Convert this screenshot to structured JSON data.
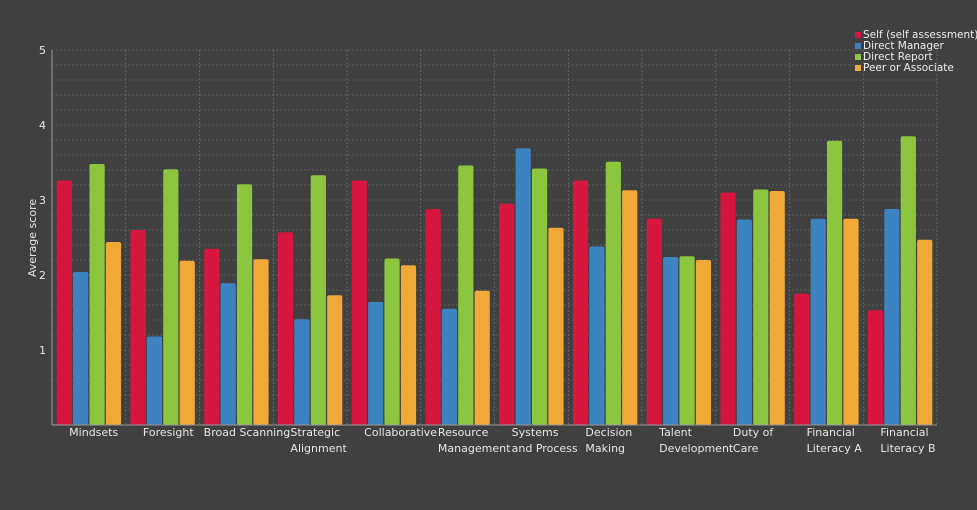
{
  "chart_data": {
    "type": "bar",
    "title": "",
    "xlabel": "",
    "ylabel": "Average score",
    "ylim": [
      0,
      5
    ],
    "yticks": [
      1,
      2,
      3,
      4,
      5
    ],
    "grid": true,
    "legend_position": "top-right",
    "categories": [
      [
        "Mindsets"
      ],
      [
        "Foresight"
      ],
      [
        "Broad Scanning"
      ],
      [
        "Strategic",
        "Alignment"
      ],
      [
        "Collaborative"
      ],
      [
        "Resource",
        "Management"
      ],
      [
        "Systems",
        "and Process"
      ],
      [
        "Decision",
        "Making"
      ],
      [
        "Talent",
        "Development"
      ],
      [
        "Duty of",
        "Care"
      ],
      [
        "Financial",
        "Literacy A"
      ],
      [
        "Financial",
        "Literacy B"
      ]
    ],
    "series": [
      {
        "name": "Self (self assessment)",
        "color": "#d6163f",
        "values": [
          3.26,
          2.6,
          2.35,
          2.57,
          3.26,
          2.88,
          2.95,
          3.26,
          2.75,
          3.1,
          1.75,
          1.53
        ]
      },
      {
        "name": "Direct Manager",
        "color": "#3d83bf",
        "values": [
          2.04,
          1.18,
          1.89,
          1.41,
          1.64,
          1.55,
          3.69,
          2.38,
          2.24,
          2.74,
          2.75,
          2.88
        ]
      },
      {
        "name": "Direct Report",
        "color": "#8cc63f",
        "values": [
          3.48,
          3.41,
          3.21,
          3.33,
          2.22,
          3.46,
          3.42,
          3.51,
          2.25,
          3.14,
          3.79,
          3.85
        ]
      },
      {
        "name": "Peer or Associate",
        "color": "#f0a836",
        "values": [
          2.44,
          2.19,
          2.21,
          1.73,
          2.13,
          1.79,
          2.63,
          3.13,
          2.2,
          3.12,
          2.75,
          2.47
        ]
      }
    ]
  }
}
